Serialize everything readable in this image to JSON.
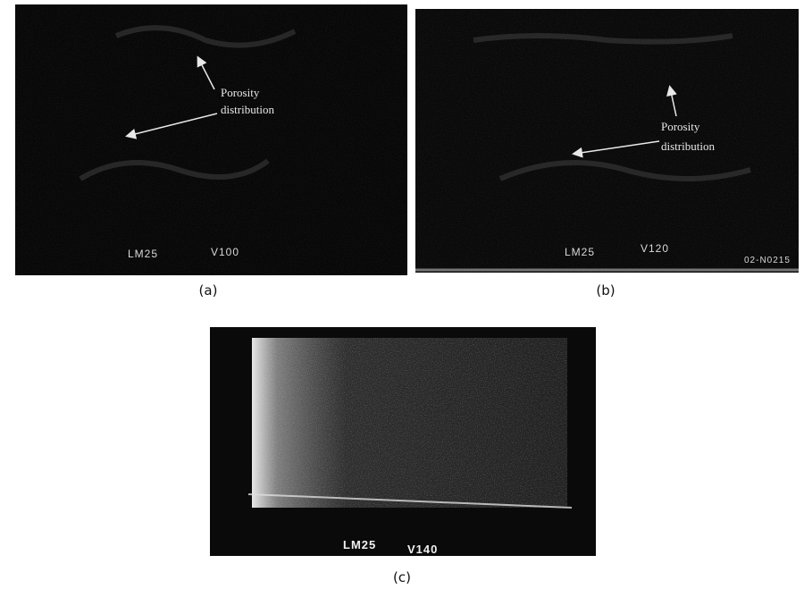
{
  "panels": [
    {
      "caption": "(a)",
      "annotation": [
        "Porosity",
        "distribution"
      ],
      "labels": [
        "LM25",
        "V100"
      ]
    },
    {
      "caption": "(b)",
      "annotation": [
        "Porosity",
        "distribution"
      ],
      "labels": [
        "LM25",
        "V120",
        "02-N0215"
      ]
    },
    {
      "caption": "(c)",
      "labels": [
        "LM25",
        "V140"
      ]
    }
  ]
}
